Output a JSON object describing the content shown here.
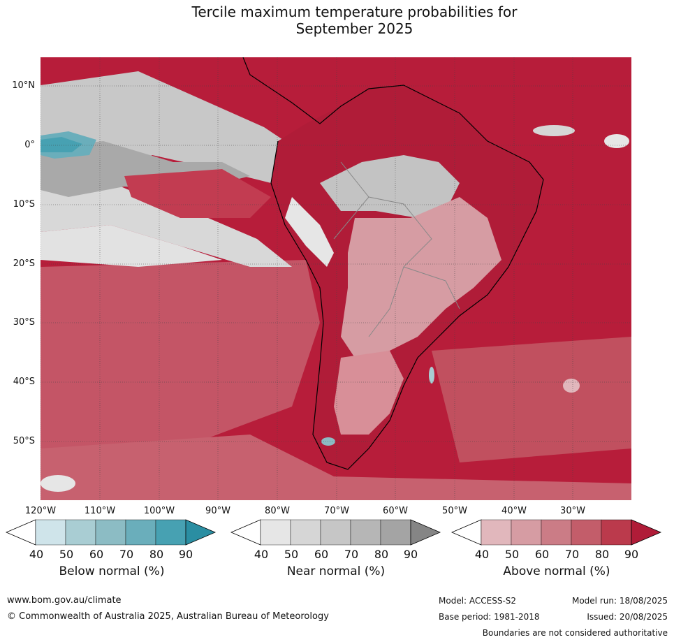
{
  "title_line1": "Tercile maximum temperature probabilities for",
  "title_line2": "September 2025",
  "lat_labels": [
    "10°N",
    "0°",
    "10°S",
    "20°S",
    "30°S",
    "40°S",
    "50°S"
  ],
  "lon_labels": [
    "120°W",
    "110°W",
    "100°W",
    "90°W",
    "80°W",
    "70°W",
    "60°W",
    "50°W",
    "40°W",
    "30°W"
  ],
  "colorbars": [
    {
      "label": "Below normal (%)",
      "ticks": [
        "40",
        "50",
        "60",
        "70",
        "80",
        "90"
      ],
      "colors": [
        "#ffffff",
        "#cfe4ea",
        "#a9cdd3",
        "#8cbcc4",
        "#6aaebb",
        "#47a1b2",
        "#2a8ea2"
      ]
    },
    {
      "label": "Near normal (%)",
      "ticks": [
        "40",
        "50",
        "60",
        "70",
        "80",
        "90"
      ],
      "colors": [
        "#ffffff",
        "#e6e6e6",
        "#d6d6d6",
        "#c6c6c6",
        "#b6b6b6",
        "#a4a4a4",
        "#858585"
      ]
    },
    {
      "label": "Above normal (%)",
      "ticks": [
        "40",
        "50",
        "60",
        "70",
        "80",
        "90"
      ],
      "colors": [
        "#ffffff",
        "#e1b7bc",
        "#d69ca3",
        "#cb7c86",
        "#c35d6a",
        "#bb3a4c",
        "#b01c38"
      ]
    }
  ],
  "footer": {
    "website": "www.bom.gov.au/climate",
    "copyright": "© Commonwealth of Australia 2025, Australian Bureau of Meteorology",
    "model": "Model: ACCESS-S2",
    "base_period": "Base period: 1981-2018",
    "model_run": "Model run: 18/08/2025",
    "issued": "Issued: 20/08/2025",
    "disclaimer": "Boundaries are not considered authoritative"
  }
}
